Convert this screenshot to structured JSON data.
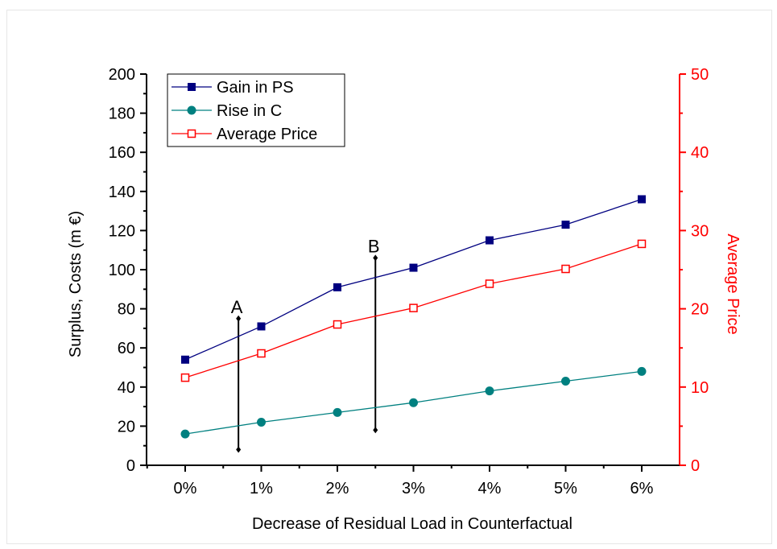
{
  "chart_data": {
    "type": "line",
    "xlabel": "Decrease of Residual Load in Counterfactual",
    "ylabel": "Surplus, Costs (m €)",
    "y2label": "Average Price",
    "categories": [
      "0%",
      "1%",
      "2%",
      "3%",
      "4%",
      "5%",
      "6%"
    ],
    "ylim": [
      0,
      200
    ],
    "y2lim": [
      0,
      50
    ],
    "yticks": [
      "0",
      "20",
      "40",
      "60",
      "80",
      "100",
      "120",
      "140",
      "160",
      "180",
      "200"
    ],
    "y2ticks": [
      "0",
      "10",
      "20",
      "30",
      "40",
      "50"
    ],
    "grid": false,
    "legend_position": "top-left",
    "series": [
      {
        "name": "Gain in PS",
        "axis": "left",
        "color": "#000080",
        "marker": "filled-square",
        "values": [
          54,
          71,
          91,
          101,
          115,
          123,
          136
        ]
      },
      {
        "name": "Rise in C",
        "axis": "left",
        "color": "#008080",
        "marker": "filled-circle",
        "values": [
          16,
          22,
          27,
          32,
          38,
          43,
          48
        ]
      },
      {
        "name": "Average Price",
        "axis": "right",
        "color": "#ff0000",
        "marker": "open-square",
        "values": [
          11.2,
          14.3,
          18,
          20.1,
          23.2,
          25.1,
          28.3
        ]
      }
    ],
    "annotations": [
      {
        "label": "A",
        "x": 0.7,
        "y_from": 8,
        "y_to": 75
      },
      {
        "label": "B",
        "x": 2.5,
        "y_from": 18,
        "y_to": 106
      }
    ]
  }
}
